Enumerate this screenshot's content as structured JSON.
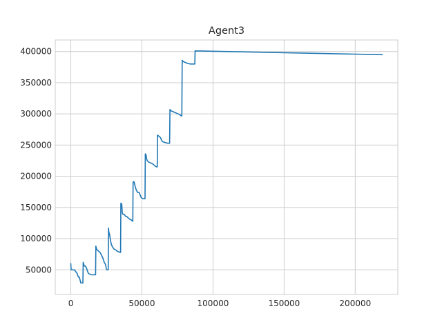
{
  "chart_data": {
    "type": "line",
    "title": "Agent3",
    "xlabel": "",
    "ylabel": "",
    "xlim": [
      -10950,
      229950
    ],
    "ylim": [
      10500,
      418500
    ],
    "grid": true,
    "legend": "none",
    "xticks": [
      0,
      50000,
      100000,
      150000,
      200000
    ],
    "yticks": [
      50000,
      100000,
      150000,
      200000,
      250000,
      300000,
      350000,
      400000
    ],
    "xtick_labels": [
      "0",
      "50000",
      "100000",
      "150000",
      "200000"
    ],
    "ytick_labels": [
      "50000",
      "100000",
      "150000",
      "200000",
      "250000",
      "300000",
      "350000",
      "400000"
    ],
    "colors": {
      "line": "#1f77b4",
      "grid": "#cccccc",
      "spine": "#cccccc"
    },
    "series": [
      {
        "x": [
          0,
          200,
          800,
          1500,
          2500,
          3500,
          4500,
          5000,
          5600,
          6000,
          6600,
          7000,
          7700,
          8500,
          8700,
          9200,
          9500,
          10200,
          11000,
          12000,
          12500,
          13500,
          14500,
          15500,
          16500,
          17000,
          17400,
          17600,
          18000,
          18500,
          19500,
          20500,
          21500,
          22500,
          23500,
          24000,
          24500,
          25000,
          25500,
          26000,
          26300,
          26500,
          26800,
          27300,
          28000,
          28500,
          29000,
          29500,
          30500,
          31500,
          32500,
          33500,
          34500,
          35000,
          35200,
          35800,
          36200,
          36700,
          37500,
          38500,
          39500,
          40500,
          41500,
          42500,
          43300,
          43600,
          43800,
          44500,
          45000,
          45500,
          46000,
          46500,
          47000,
          48000,
          49500,
          50500,
          51500,
          52200,
          52400,
          52900,
          53300,
          53800,
          54500,
          55500,
          56500,
          57500,
          58500,
          59500,
          60400,
          60800,
          61000,
          62000,
          63000,
          64000,
          65000,
          66500,
          68000,
          69200,
          69500,
          69700,
          70500,
          71500,
          72500,
          73500,
          74500,
          75500,
          76500,
          77500,
          78100,
          78300,
          79000,
          80000,
          81000,
          82000,
          84000,
          86500,
          87200,
          87400,
          219000
        ],
        "y": [
          60000,
          50000,
          50000,
          50000,
          50000,
          47000,
          44000,
          40000,
          38000,
          38000,
          33000,
          29000,
          29000,
          29000,
          62000,
          58000,
          56000,
          56000,
          53000,
          46000,
          44000,
          43000,
          42000,
          42000,
          42000,
          42000,
          42000,
          88000,
          84000,
          82000,
          80000,
          78000,
          74000,
          69000,
          62000,
          60000,
          58000,
          51000,
          50000,
          50000,
          50000,
          117000,
          110000,
          106000,
          96000,
          91000,
          88000,
          86000,
          83000,
          82000,
          80000,
          79000,
          78000,
          78000,
          157000,
          155000,
          141000,
          139000,
          139000,
          136000,
          135000,
          133000,
          131000,
          130000,
          128000,
          128000,
          191000,
          191000,
          186000,
          182000,
          178000,
          176000,
          174000,
          174000,
          166000,
          164000,
          164000,
          164000,
          236000,
          234000,
          228000,
          225000,
          223000,
          222000,
          221000,
          220000,
          218000,
          216000,
          215000,
          215000,
          266000,
          264000,
          262000,
          257000,
          255000,
          254000,
          253000,
          253000,
          253000,
          307000,
          305000,
          304000,
          303000,
          302000,
          301000,
          300000,
          299000,
          297000,
          297000,
          386000,
          384000,
          383000,
          382000,
          381000,
          380000,
          380000,
          380000,
          401000,
          395000
        ]
      }
    ]
  }
}
